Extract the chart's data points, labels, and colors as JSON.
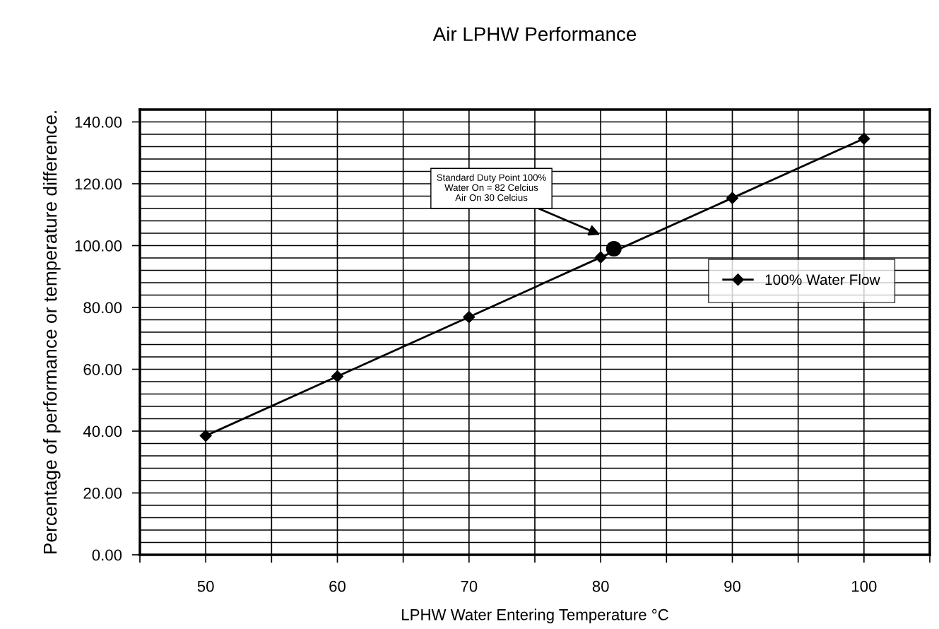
{
  "chart_data": {
    "type": "line",
    "title": "Air LPHW Performance",
    "xlabel": "LPHW Water Entering Temperature °C",
    "ylabel": "Percentage of performance or temperature difference.",
    "series": [
      {
        "name": "100% Water Flow",
        "color": "#000000",
        "marker": "diamond",
        "x": [
          50,
          60,
          70,
          80,
          90,
          100
        ],
        "values": [
          38.5,
          57.7,
          76.9,
          96.2,
          115.4,
          134.6
        ]
      },
      {
        "type": "scatter",
        "color": "#000000",
        "marker": "circle",
        "x": [
          81
        ],
        "values": [
          99
        ]
      }
    ],
    "annotations": [
      "Standard Duty Point 100%\nWater On = 82 Celcius\nAir On 30 Celcius"
    ],
    "xlim": [
      45,
      105
    ],
    "xticks": [
      {
        "value": 45,
        "label": null
      },
      50,
      {
        "value": 55,
        "label": null
      },
      60,
      {
        "value": 65,
        "label": null
      },
      70,
      {
        "value": 75,
        "label": null
      },
      80,
      {
        "value": 85,
        "label": null
      },
      90,
      {
        "value": 95,
        "label": null
      },
      100,
      {
        "value": 105,
        "label": null
      }
    ],
    "ylim": [
      0,
      144
    ],
    "yticks": [
      {
        "value": 0,
        "label": "0.00"
      },
      {
        "value": 20,
        "label": "20.00"
      },
      {
        "value": 40,
        "label": "40.00"
      },
      {
        "value": 60,
        "label": "60.00"
      },
      {
        "value": 80,
        "label": "80.00"
      },
      {
        "value": 100,
        "label": "100.00"
      },
      {
        "value": 120,
        "label": "120.00"
      },
      {
        "value": 140,
        "label": "140.00"
      }
    ],
    "grid": true,
    "legend": "right"
  }
}
